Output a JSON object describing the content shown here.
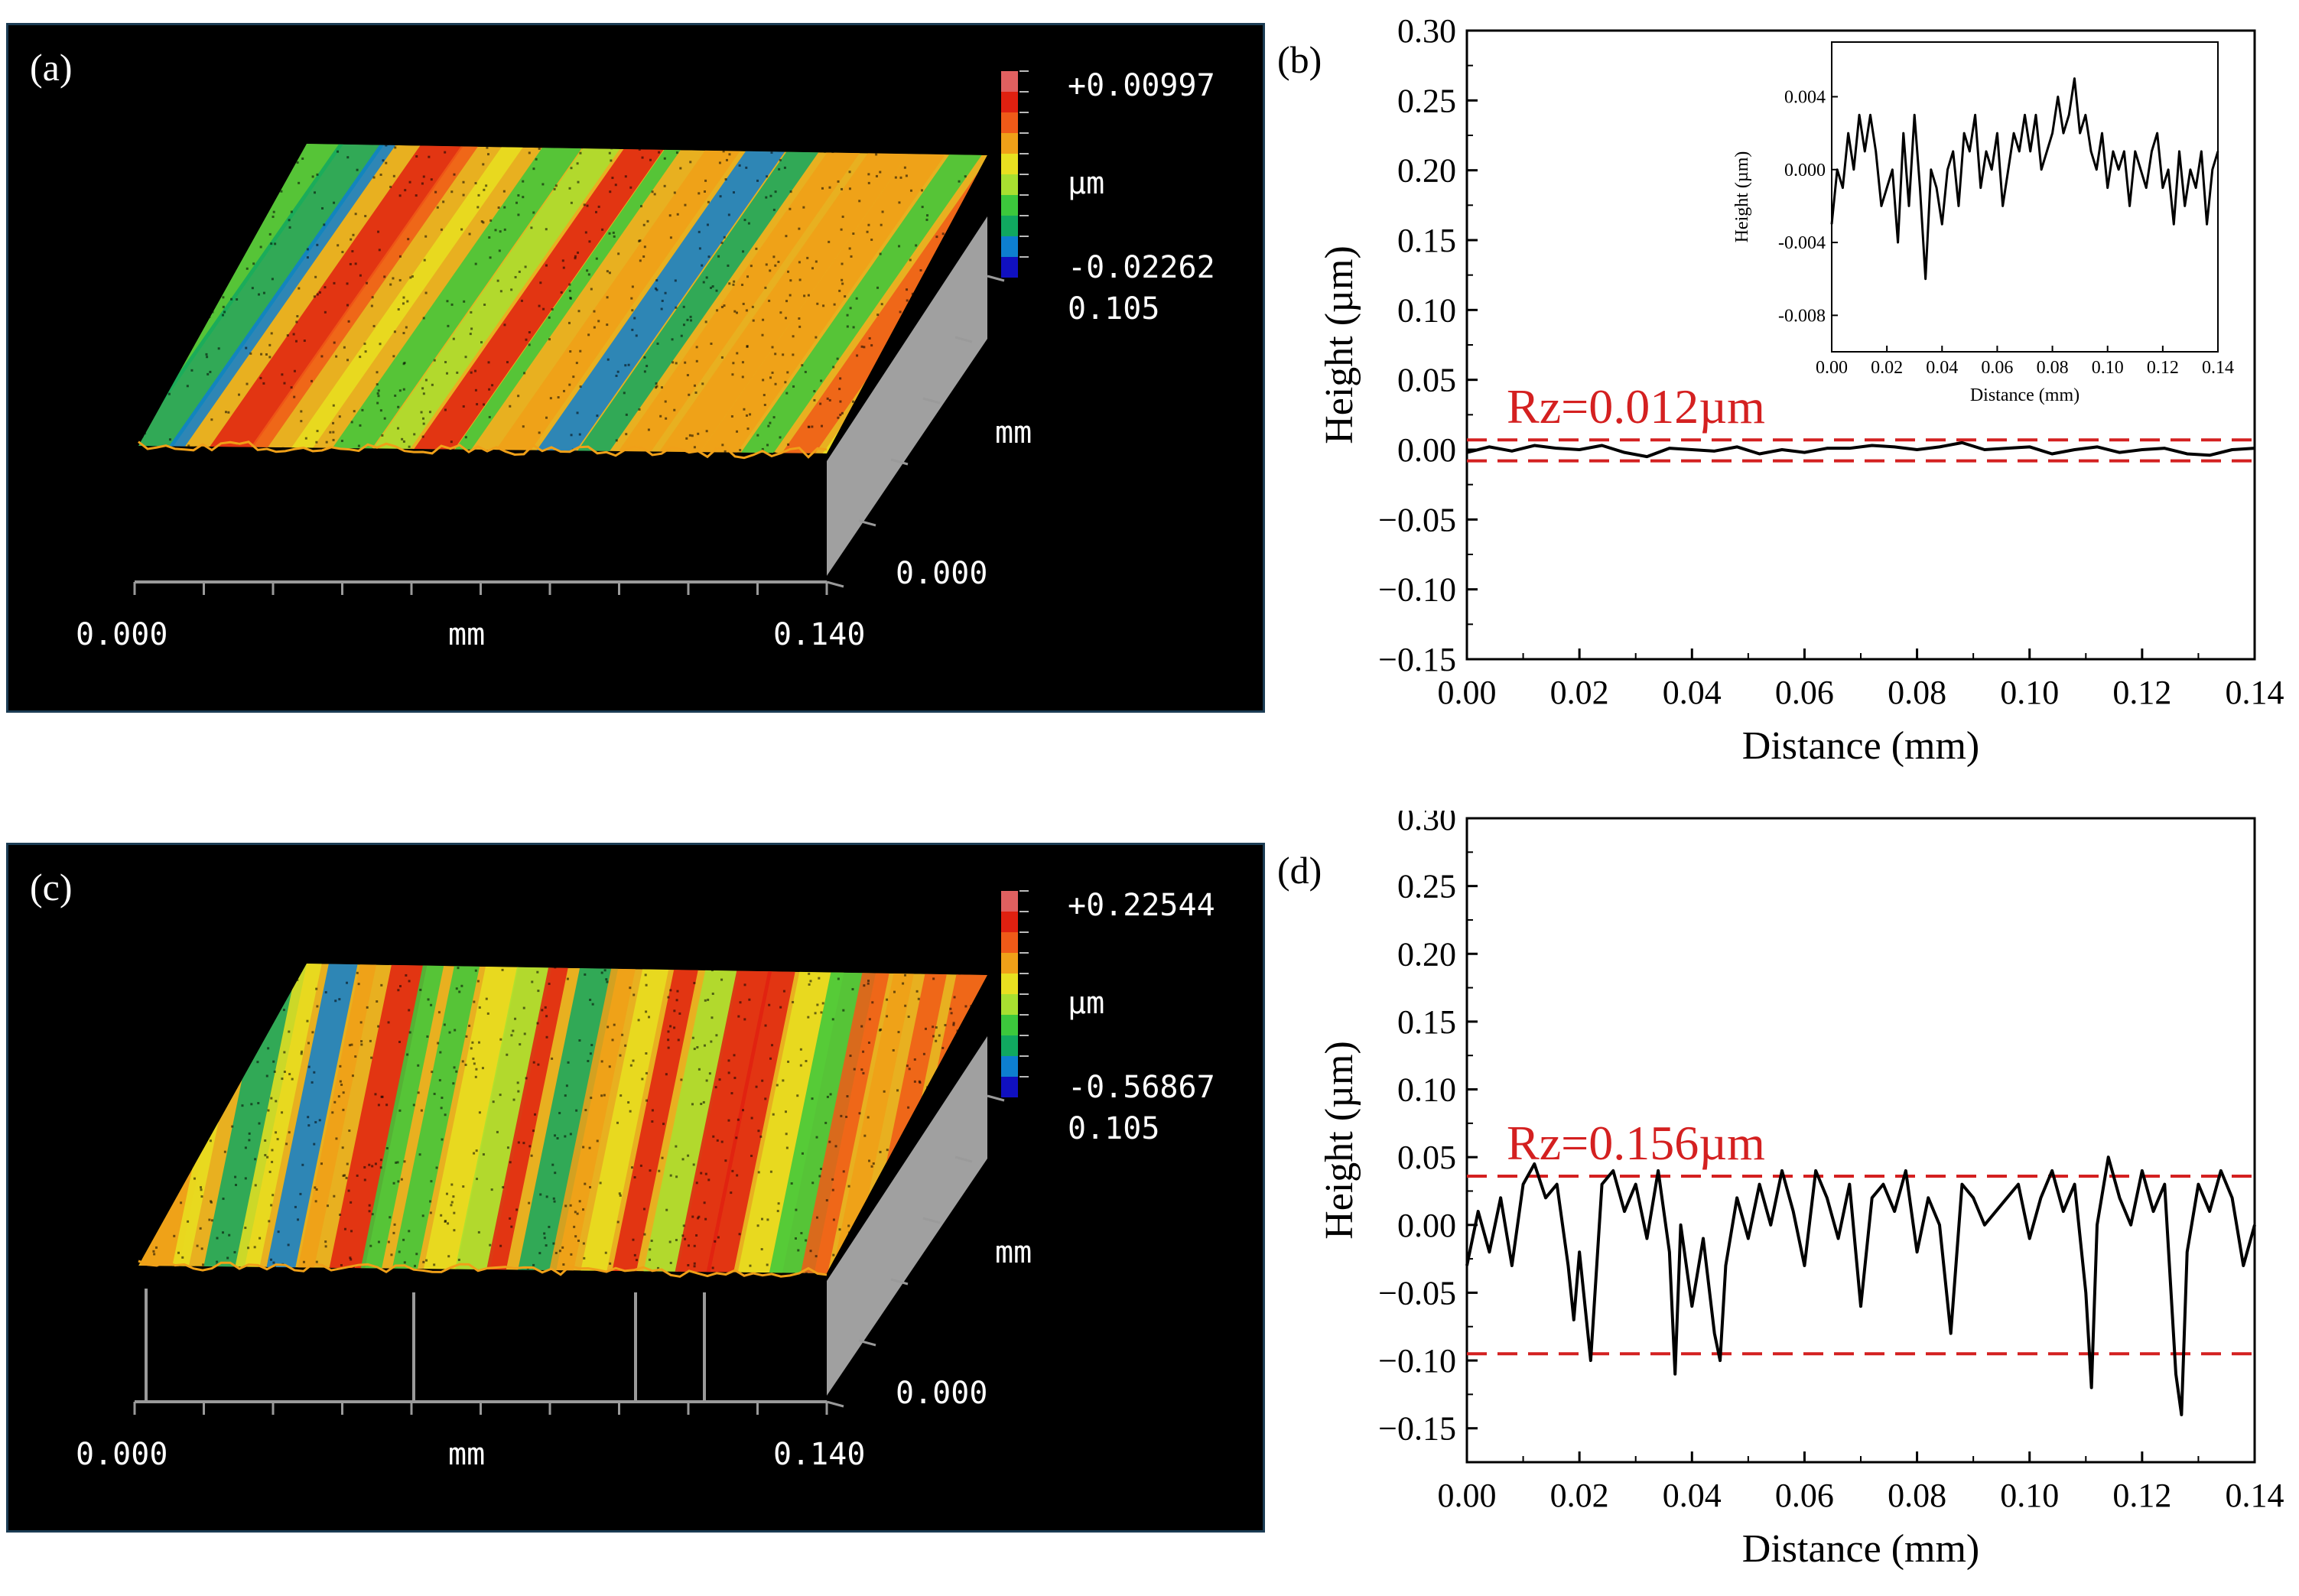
{
  "colors": {
    "surface_palette": [
      "#1010c0",
      "#0d7fd0",
      "#10a860",
      "#3cc83c",
      "#a8e030",
      "#e8e020",
      "#f0a018",
      "#f05a18",
      "#e02010",
      "#e06060"
    ],
    "dashed_line": "#d42020",
    "rz_text": "#d42020",
    "trace": "#000000",
    "wall": "#a0a0a0"
  },
  "panels_3d": [
    {
      "id": "a",
      "label": "(a)",
      "scale_max": "+0.00997",
      "scale_unit": "µm",
      "scale_min": "-0.02262",
      "y_extent": "0.105",
      "y_axis_unit": "mm",
      "y_axis_zero": "0.000",
      "x_axis_start": "0.000",
      "x_axis_unit": "mm",
      "x_axis_end": "0.140",
      "stripe_pattern": "diagonal",
      "has_spikes": false
    },
    {
      "id": "c",
      "label": "(c)",
      "scale_max": "+0.22544",
      "scale_unit": "µm",
      "scale_min": "-0.56867",
      "y_extent": "0.105",
      "y_axis_unit": "mm",
      "y_axis_zero": "0.000",
      "x_axis_start": "0.000",
      "x_axis_unit": "mm",
      "x_axis_end": "0.140",
      "stripe_pattern": "steep",
      "has_spikes": true
    }
  ],
  "chart_data": [
    {
      "id": "b",
      "label": "(b)",
      "type": "line",
      "title": "",
      "xlabel": "Distance (mm)",
      "ylabel": "Height (µm)",
      "xlim": [
        0,
        0.14
      ],
      "ylim": [
        -0.15,
        0.3
      ],
      "xticks": [
        "0.00",
        "0.02",
        "0.04",
        "0.06",
        "0.08",
        "0.10",
        "0.12",
        "0.14"
      ],
      "yticks": [
        "−0.15",
        "−0.10",
        "−0.05",
        "0.00",
        "0.05",
        "0.10",
        "0.15",
        "0.20",
        "0.25",
        "0.30"
      ],
      "annotation": "Rz=0.012µm",
      "dashed_lines": [
        0.007,
        -0.008
      ],
      "series": [
        {
          "name": "profile",
          "x": [
            0.0,
            0.004,
            0.008,
            0.012,
            0.016,
            0.02,
            0.024,
            0.028,
            0.032,
            0.036,
            0.04,
            0.044,
            0.048,
            0.052,
            0.056,
            0.06,
            0.064,
            0.068,
            0.072,
            0.076,
            0.08,
            0.084,
            0.088,
            0.092,
            0.096,
            0.1,
            0.104,
            0.108,
            0.112,
            0.116,
            0.12,
            0.124,
            0.128,
            0.132,
            0.136,
            0.14
          ],
          "y": [
            -0.002,
            0.002,
            -0.001,
            0.003,
            0.001,
            0.0,
            0.003,
            -0.002,
            -0.005,
            0.001,
            0.0,
            -0.001,
            0.002,
            -0.003,
            0.0,
            -0.002,
            0.001,
            0.001,
            0.003,
            0.002,
            0.0,
            0.002,
            0.005,
            0.0,
            0.001,
            0.002,
            -0.003,
            0.0,
            0.002,
            -0.002,
            0.0,
            0.001,
            -0.003,
            -0.004,
            0.0,
            0.001
          ]
        }
      ],
      "inset": {
        "xlabel": "Distance (mm)",
        "ylabel": "Height (µm)",
        "xlim": [
          0,
          0.14
        ],
        "ylim": [
          -0.01,
          0.007
        ],
        "xticks": [
          "0.00",
          "0.02",
          "0.04",
          "0.06",
          "0.08",
          "0.10",
          "0.12",
          "0.14"
        ],
        "yticks": [
          "-0.008",
          "-0.004",
          "0.000",
          "0.004"
        ],
        "x": [
          0.0,
          0.002,
          0.004,
          0.006,
          0.008,
          0.01,
          0.012,
          0.014,
          0.016,
          0.018,
          0.02,
          0.022,
          0.024,
          0.026,
          0.028,
          0.03,
          0.032,
          0.034,
          0.036,
          0.038,
          0.04,
          0.042,
          0.044,
          0.046,
          0.048,
          0.05,
          0.052,
          0.054,
          0.056,
          0.058,
          0.06,
          0.062,
          0.064,
          0.066,
          0.068,
          0.07,
          0.072,
          0.074,
          0.076,
          0.078,
          0.08,
          0.082,
          0.084,
          0.086,
          0.088,
          0.09,
          0.092,
          0.094,
          0.096,
          0.098,
          0.1,
          0.102,
          0.104,
          0.106,
          0.108,
          0.11,
          0.112,
          0.114,
          0.116,
          0.118,
          0.12,
          0.122,
          0.124,
          0.126,
          0.128,
          0.13,
          0.132,
          0.134,
          0.136,
          0.138,
          0.14
        ],
        "y": [
          -0.003,
          0.0,
          -0.001,
          0.002,
          0.0,
          0.003,
          0.001,
          0.003,
          0.001,
          -0.002,
          -0.001,
          0.0,
          -0.004,
          0.002,
          -0.002,
          0.003,
          -0.001,
          -0.006,
          0.0,
          -0.001,
          -0.003,
          0.0,
          0.001,
          -0.002,
          0.002,
          0.001,
          0.003,
          -0.001,
          0.001,
          0.0,
          0.002,
          -0.002,
          0.0,
          0.002,
          0.001,
          0.003,
          0.001,
          0.003,
          0.0,
          0.001,
          0.002,
          0.004,
          0.002,
          0.003,
          0.005,
          0.002,
          0.003,
          0.001,
          0.0,
          0.002,
          -0.001,
          0.001,
          0.0,
          0.001,
          -0.002,
          0.001,
          0.0,
          -0.001,
          0.001,
          0.002,
          -0.001,
          0.0,
          -0.003,
          0.001,
          -0.002,
          0.0,
          -0.001,
          0.001,
          -0.003,
          0.0,
          0.001
        ]
      }
    },
    {
      "id": "d",
      "label": "(d)",
      "type": "line",
      "title": "",
      "xlabel": "Distance (mm)",
      "ylabel": "Height (µm)",
      "xlim": [
        0,
        0.14
      ],
      "ylim": [
        -0.175,
        0.3
      ],
      "xticks": [
        "0.00",
        "0.02",
        "0.04",
        "0.06",
        "0.08",
        "0.10",
        "0.12",
        "0.14"
      ],
      "yticks": [
        "−0.15",
        "−0.10",
        "−0.05",
        "0.00",
        "0.05",
        "0.10",
        "0.15",
        "0.20",
        "0.25",
        "0.30"
      ],
      "annotation": "Rz=0.156µm",
      "dashed_lines": [
        0.036,
        -0.095
      ],
      "series": [
        {
          "name": "profile",
          "x": [
            0.0,
            0.002,
            0.004,
            0.006,
            0.008,
            0.01,
            0.012,
            0.014,
            0.016,
            0.018,
            0.019,
            0.02,
            0.021,
            0.022,
            0.024,
            0.026,
            0.028,
            0.03,
            0.032,
            0.034,
            0.036,
            0.037,
            0.038,
            0.04,
            0.042,
            0.044,
            0.045,
            0.046,
            0.048,
            0.05,
            0.052,
            0.054,
            0.056,
            0.058,
            0.06,
            0.062,
            0.064,
            0.066,
            0.068,
            0.07,
            0.072,
            0.074,
            0.076,
            0.078,
            0.08,
            0.082,
            0.084,
            0.086,
            0.088,
            0.09,
            0.092,
            0.094,
            0.096,
            0.098,
            0.1,
            0.102,
            0.104,
            0.106,
            0.108,
            0.11,
            0.111,
            0.112,
            0.114,
            0.116,
            0.118,
            0.12,
            0.122,
            0.124,
            0.126,
            0.127,
            0.128,
            0.13,
            0.132,
            0.134,
            0.136,
            0.138,
            0.14
          ],
          "y": [
            -0.03,
            0.01,
            -0.02,
            0.02,
            -0.03,
            0.03,
            0.045,
            0.02,
            0.03,
            -0.03,
            -0.07,
            -0.02,
            -0.06,
            -0.1,
            0.03,
            0.04,
            0.01,
            0.03,
            -0.01,
            0.04,
            -0.02,
            -0.11,
            0.0,
            -0.06,
            -0.01,
            -0.08,
            -0.1,
            -0.03,
            0.02,
            -0.01,
            0.03,
            0.0,
            0.04,
            0.01,
            -0.03,
            0.04,
            0.02,
            -0.01,
            0.03,
            -0.06,
            0.02,
            0.03,
            0.01,
            0.04,
            -0.02,
            0.02,
            0.0,
            -0.08,
            0.03,
            0.02,
            0.0,
            0.01,
            0.02,
            0.03,
            -0.01,
            0.02,
            0.04,
            0.01,
            0.03,
            -0.05,
            -0.12,
            0.0,
            0.05,
            0.02,
            0.0,
            0.04,
            0.01,
            0.03,
            -0.11,
            -0.14,
            -0.02,
            0.03,
            0.01,
            0.04,
            0.02,
            -0.03,
            0.0
          ]
        }
      ]
    }
  ]
}
